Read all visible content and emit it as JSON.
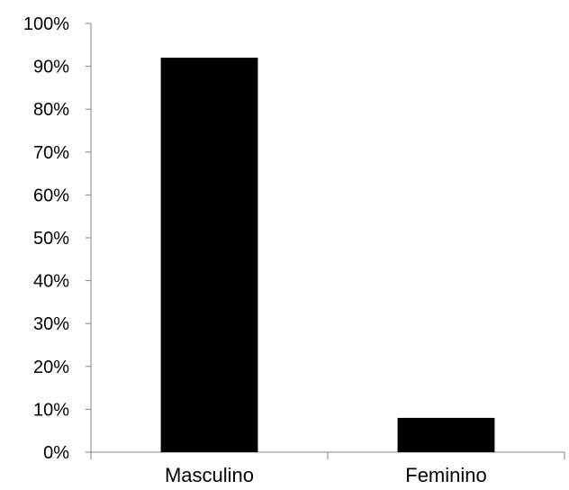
{
  "chart_data": {
    "type": "bar",
    "categories": [
      "Masculino",
      "Feminino"
    ],
    "values": [
      92,
      8
    ],
    "title": "",
    "xlabel": "",
    "ylabel": "",
    "ylim": [
      0,
      100
    ],
    "y_ticks": [
      "0%",
      "10%",
      "20%",
      "30%",
      "40%",
      "50%",
      "60%",
      "70%",
      "80%",
      "90%",
      "100%"
    ],
    "grid": false,
    "bar_color": "#000000",
    "axis_color": "#868686"
  }
}
